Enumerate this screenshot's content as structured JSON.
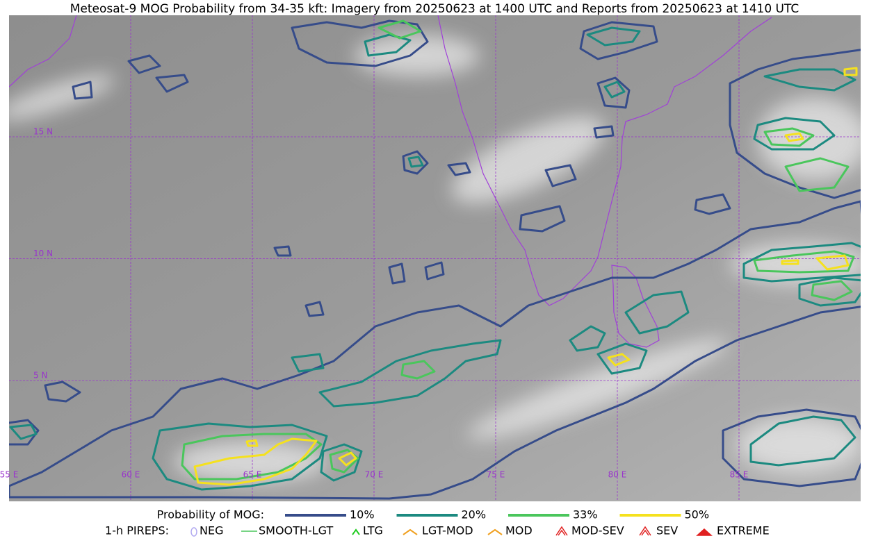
{
  "title": "Meteosat-9 MOG Probability from 34-35 kft: Imagery from 20250623 at 1400 UTC and Reports from 20250623 at 1410 UTC",
  "map": {
    "lat_labels": [
      "15 N",
      "10 N",
      "5 N"
    ],
    "lon_labels": [
      "55 E",
      "60 E",
      "65 E",
      "70 E",
      "75 E",
      "80 E",
      "85 E"
    ]
  },
  "legend": {
    "probability": {
      "label": "Probability of MOG:",
      "entries": [
        {
          "label": "10%",
          "color": "#364c8a"
        },
        {
          "label": "20%",
          "color": "#1c8a80"
        },
        {
          "label": "33%",
          "color": "#4ac65c"
        },
        {
          "label": "50%",
          "color": "#f5e11e"
        }
      ]
    },
    "pireps": {
      "label": "1-h PIREPS:",
      "entries": [
        {
          "label": "NEG"
        },
        {
          "label": "SMOOTH-LGT"
        },
        {
          "label": "LTG"
        },
        {
          "label": "LGT-MOD"
        },
        {
          "label": "MOD"
        },
        {
          "label": "MOD-SEV"
        },
        {
          "label": "SEV"
        },
        {
          "label": "EXTREME"
        }
      ]
    }
  }
}
